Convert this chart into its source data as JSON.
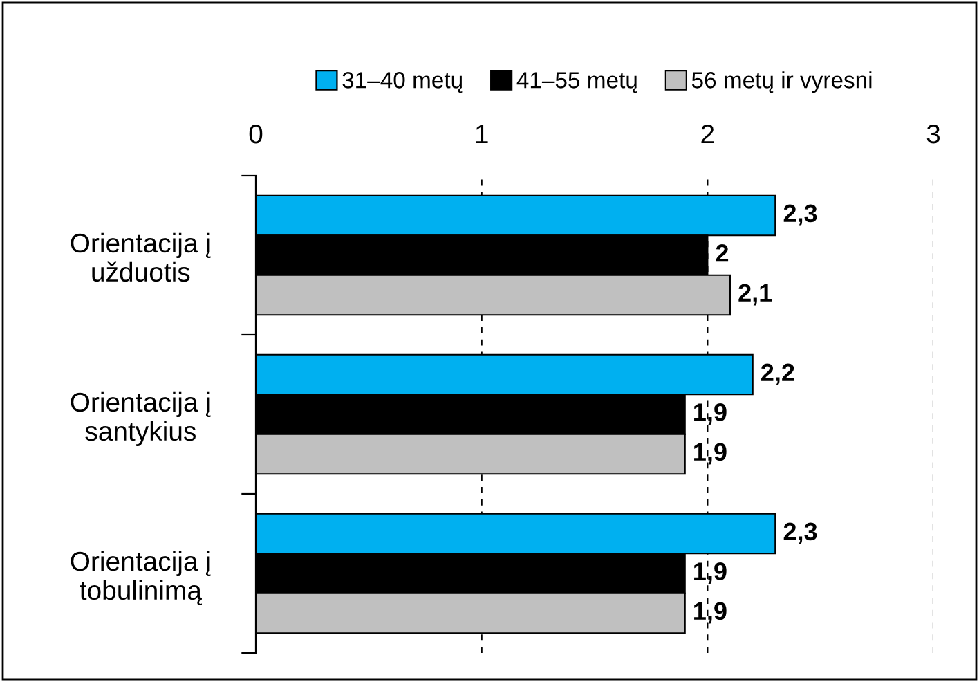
{
  "chart_data": {
    "type": "bar",
    "orientation": "horizontal",
    "categories": [
      "Orientacija į\nužduotis",
      "Orientacija į\nsantykius",
      "Orientacija į\ntobulinimą"
    ],
    "series": [
      {
        "name": "31–40 metų",
        "color": "#00b0f0",
        "values": [
          2.3,
          2.2,
          2.3
        ],
        "value_labels": [
          "2,3",
          "2,2",
          "2,3"
        ]
      },
      {
        "name": "41–55 metų",
        "color": "#000000",
        "values": [
          2,
          1.9,
          1.9
        ],
        "value_labels": [
          "2",
          "1,9",
          "1,9"
        ]
      },
      {
        "name": "56 metų ir vyresni",
        "color": "#c0c0c0",
        "values": [
          2.1,
          1.9,
          1.9
        ],
        "value_labels": [
          "2,1",
          "1,9",
          "1,9"
        ]
      }
    ],
    "xlim": [
      0,
      3
    ],
    "xticks": [
      0,
      1,
      2,
      3
    ],
    "grid": "x",
    "legend": "top"
  }
}
